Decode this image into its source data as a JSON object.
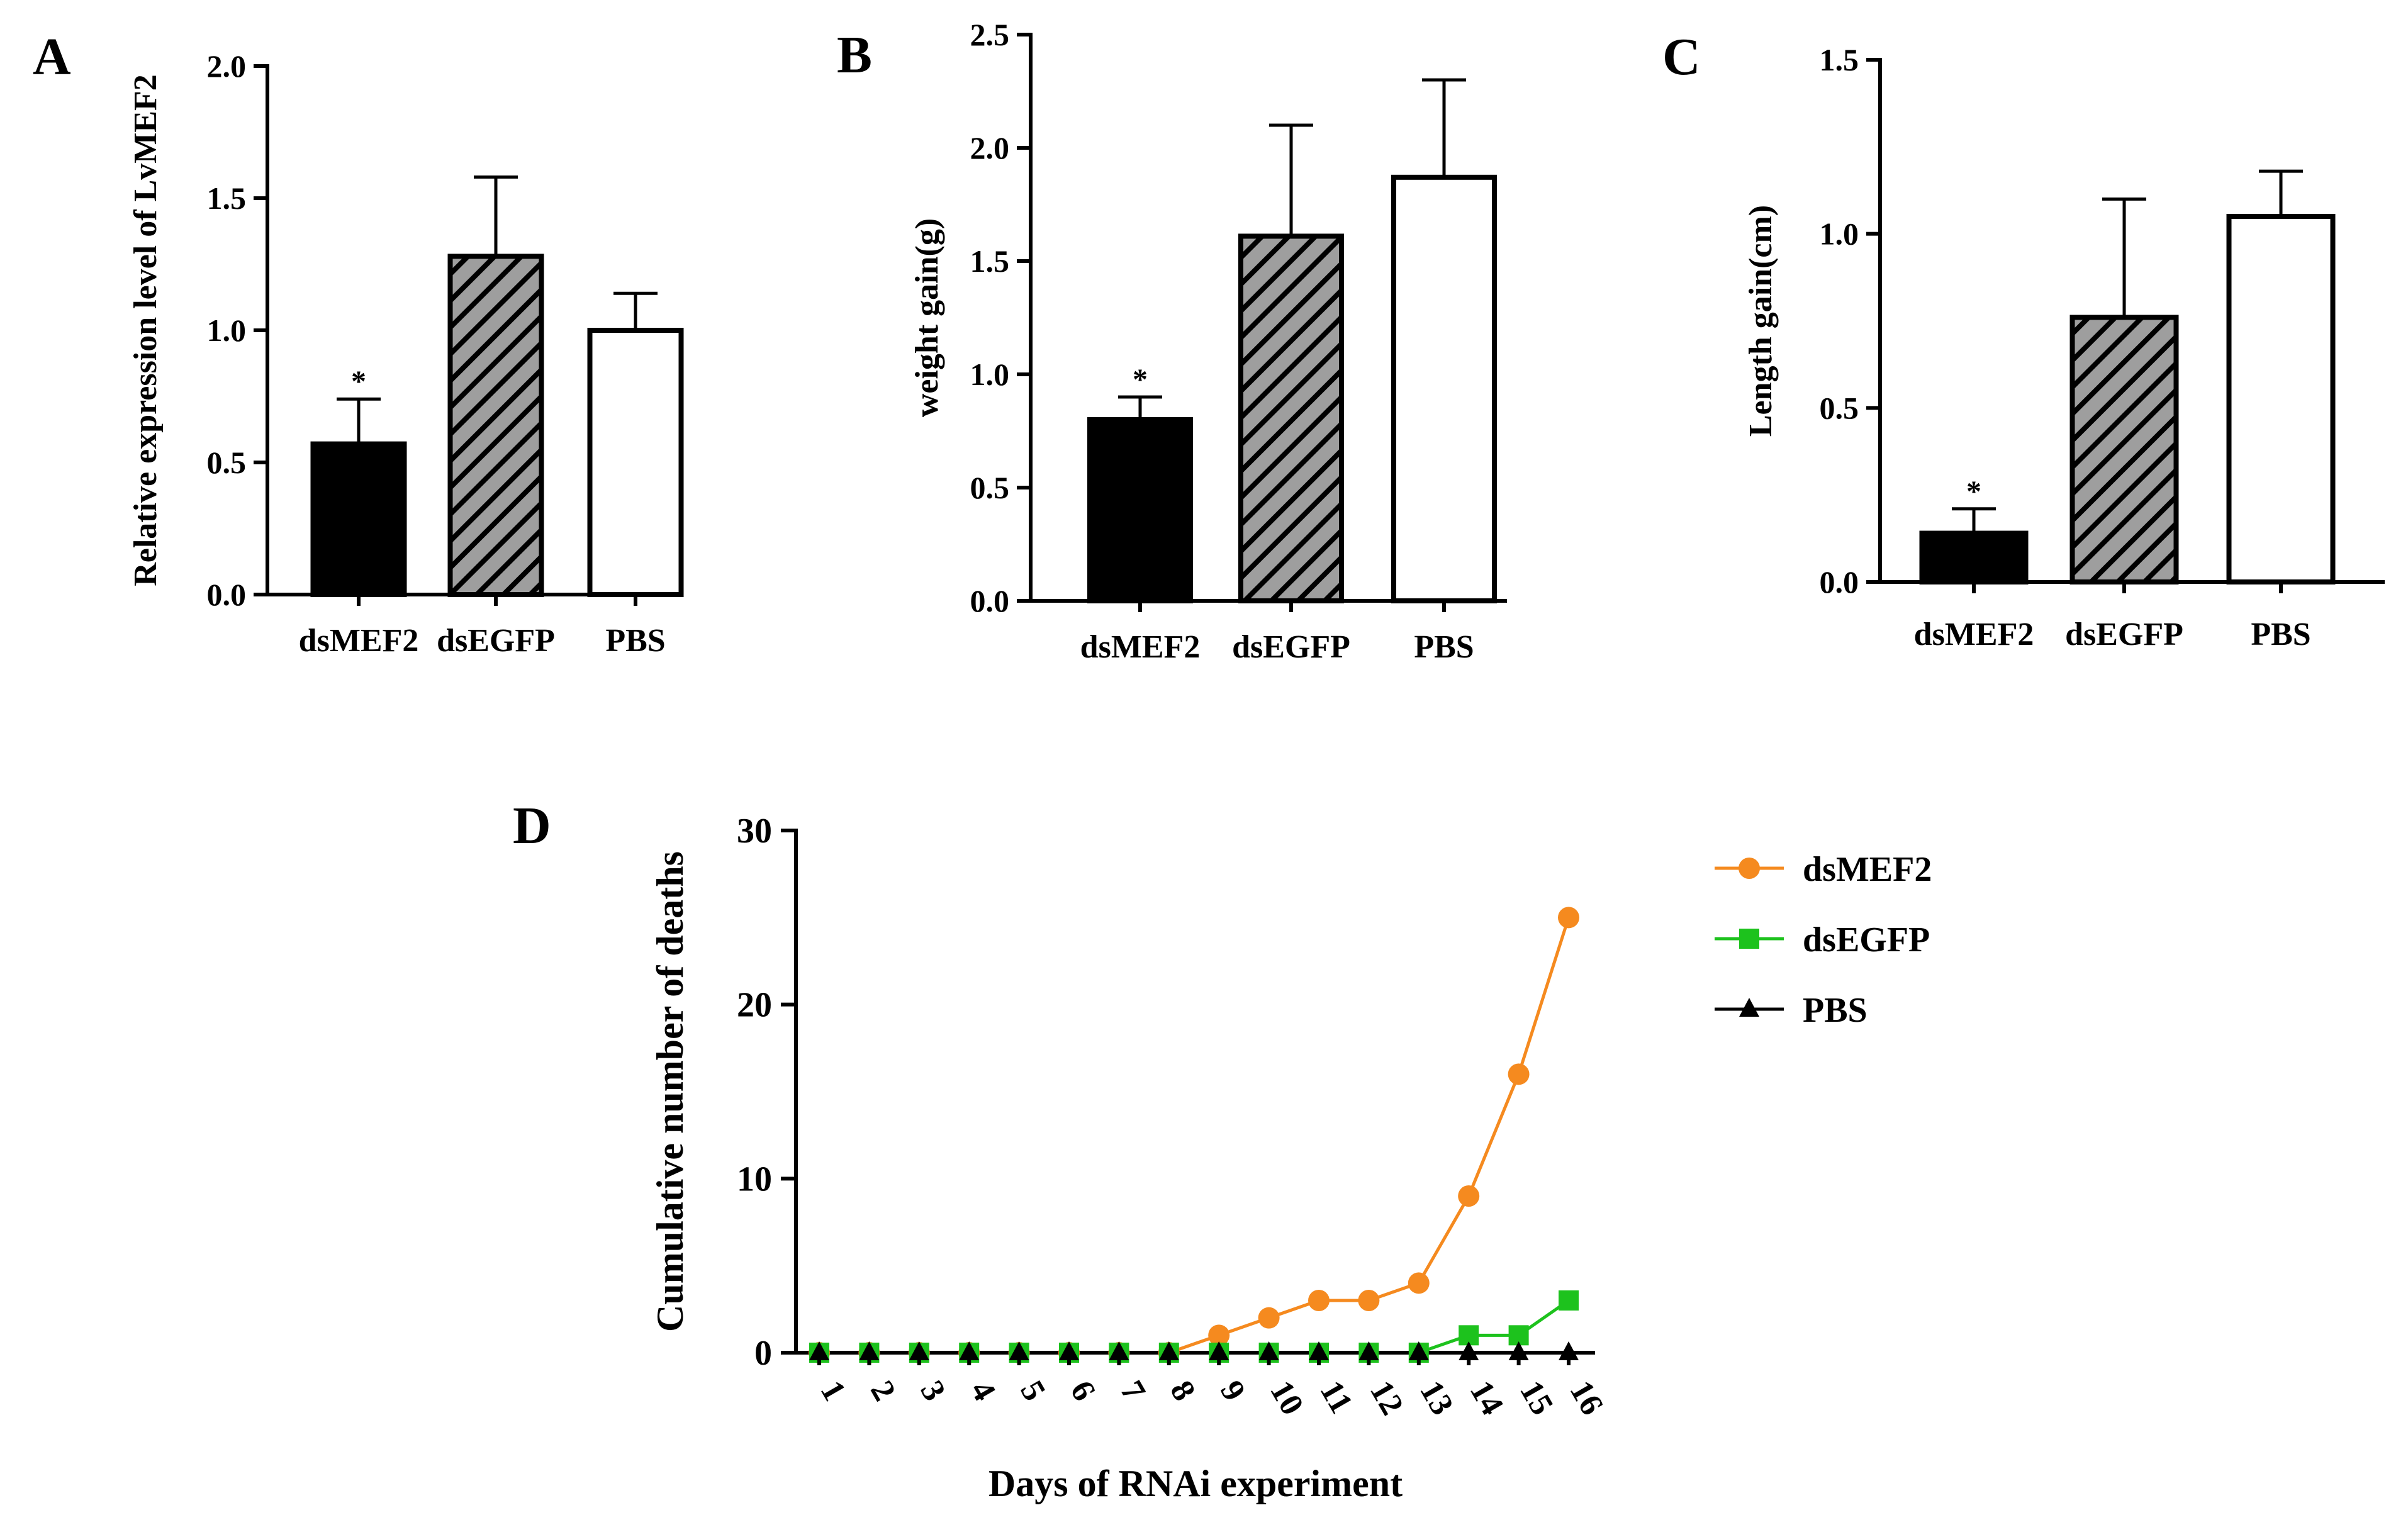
{
  "colors": {
    "dsMEF2": "#f58a1f",
    "dsEGFP": "#1dc21d",
    "PBS": "#000000",
    "bar_dsMEF2": "#000000",
    "bar_dsEGFP": "#9e9e9e",
    "bar_PBS": "#ffffff"
  },
  "chart_data": [
    {
      "id": "A",
      "type": "bar",
      "panel_label": "A",
      "categories": [
        "dsMEF2",
        "dsEGFP",
        "PBS"
      ],
      "values": [
        0.57,
        1.28,
        1.0
      ],
      "errors": [
        0.17,
        0.3,
        0.14
      ],
      "significance": [
        "*",
        "",
        ""
      ],
      "ylabel": "Relative expression level of LvMEF2",
      "ylim": [
        0,
        2.0
      ],
      "yticks": [
        "0.0",
        "0.5",
        "1.0",
        "1.5",
        "2.0"
      ]
    },
    {
      "id": "B",
      "type": "bar",
      "panel_label": "B",
      "categories": [
        "dsMEF2",
        "dsEGFP",
        "PBS"
      ],
      "values": [
        0.8,
        1.61,
        1.87
      ],
      "errors": [
        0.1,
        0.49,
        0.43
      ],
      "significance": [
        "*",
        "",
        ""
      ],
      "ylabel": "weight gain(g)",
      "ylim": [
        0,
        2.5
      ],
      "yticks": [
        "0.0",
        "0.5",
        "1.0",
        "1.5",
        "2.0",
        "2.5"
      ]
    },
    {
      "id": "C",
      "type": "bar",
      "panel_label": "C",
      "categories": [
        "dsMEF2",
        "dsEGFP",
        "PBS"
      ],
      "values": [
        0.14,
        0.76,
        1.05
      ],
      "errors": [
        0.07,
        0.34,
        0.13
      ],
      "significance": [
        "*",
        "",
        ""
      ],
      "ylabel": "Length gain(cm)",
      "ylim": [
        0,
        1.5
      ],
      "yticks": [
        "0.0",
        "0.5",
        "1.0",
        "1.5"
      ]
    },
    {
      "id": "D",
      "type": "line",
      "panel_label": "D",
      "x": [
        1,
        2,
        3,
        4,
        5,
        6,
        7,
        8,
        9,
        10,
        11,
        12,
        13,
        14,
        15,
        16
      ],
      "xtick_labels": [
        "1",
        "2",
        "3",
        "4",
        "5",
        "6",
        "7",
        "8",
        "9",
        "10",
        "11",
        "12",
        "13",
        "14",
        "15",
        "16"
      ],
      "series": [
        {
          "name": "dsMEF2",
          "marker": "circle",
          "values": [
            0,
            0,
            0,
            0,
            0,
            0,
            0,
            0,
            1,
            2,
            3,
            3,
            4,
            9,
            16,
            25
          ]
        },
        {
          "name": "dsEGFP",
          "marker": "square",
          "values": [
            0,
            0,
            0,
            0,
            0,
            0,
            0,
            0,
            0,
            0,
            0,
            0,
            0,
            1,
            1,
            3
          ]
        },
        {
          "name": "PBS",
          "marker": "triangle",
          "values": [
            0,
            0,
            0,
            0,
            0,
            0,
            0,
            0,
            0,
            0,
            0,
            0,
            0,
            0,
            0,
            0
          ]
        }
      ],
      "xlabel": "Days of RNAi experiment",
      "ylabel": "Cumulative number of deaths",
      "ylim": [
        0,
        30
      ],
      "yticks": [
        "0",
        "10",
        "20",
        "30"
      ],
      "legend_position": "top-right"
    }
  ]
}
